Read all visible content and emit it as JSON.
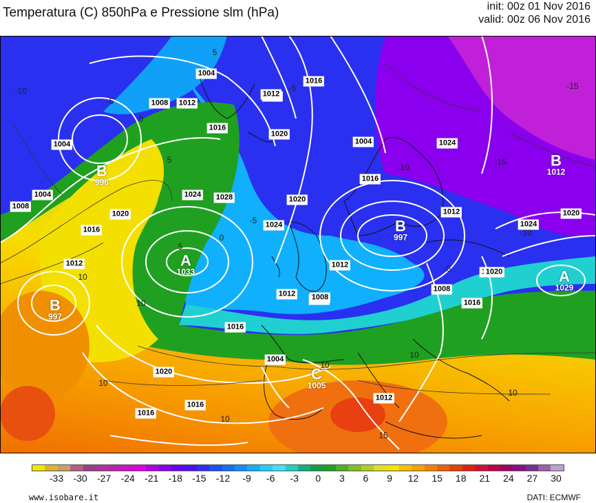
{
  "header": {
    "title": "Temperatura (C) 850hPa e Pressione slm (hPa)",
    "init": "init: 00z 01 Nov 2016",
    "valid": "valid: 00z 06 Nov 2016"
  },
  "map": {
    "pressure_centers": [
      {
        "type": "B",
        "value": "996"
      },
      {
        "type": "B",
        "value": "997"
      },
      {
        "type": "A",
        "value": "1033"
      },
      {
        "type": "B",
        "value": "997"
      },
      {
        "type": "C",
        "value": "1005"
      },
      {
        "type": "B",
        "value": "1012"
      },
      {
        "type": "A",
        "value": "1029"
      }
    ],
    "isobar_labels": [
      "1004",
      "1008",
      "1012",
      "1016",
      "1020",
      "1024",
      "1028",
      "1004",
      "1004",
      "1008",
      "1012",
      "1016",
      "1020",
      "1024",
      "1016",
      "1012",
      "1016",
      "1012",
      "1008",
      "1004",
      "1016",
      "1020",
      "1024",
      "1020",
      "1012",
      "1016",
      "1008",
      "1012",
      "1016",
      "1020",
      "1024",
      "1028",
      "1012",
      "1004",
      "1008",
      "1012",
      "1016",
      "1020"
    ],
    "isotherm_labels": [
      "-10",
      "-5",
      "0",
      "5",
      "10",
      "10",
      "5",
      "10",
      "-5",
      "0",
      "5",
      "-5",
      "10",
      "10",
      "10",
      "15",
      "10",
      "-10",
      "-15",
      "-15",
      "-10",
      "-5"
    ]
  },
  "legend": {
    "ticks": [
      "-33",
      "-30",
      "-27",
      "-24",
      "-21",
      "-18",
      "-15",
      "-12",
      "-9",
      "-6",
      "-3",
      "0",
      "3",
      "6",
      "9",
      "12",
      "15",
      "18",
      "21",
      "24",
      "27",
      "30"
    ],
    "colors": [
      "#f2e600",
      "#e0b030",
      "#c8a060",
      "#b06080",
      "#9a3e8a",
      "#b030a0",
      "#c020b0",
      "#d010c8",
      "#e000e0",
      "#b000e8",
      "#8a00ee",
      "#6a00f0",
      "#4a10f4",
      "#2a30f6",
      "#1a50f8",
      "#1070fa",
      "#0c90fb",
      "#10b0fc",
      "#20d0fc",
      "#40e0ff",
      "#20d0c0",
      "#10b080",
      "#10a040",
      "#20a020",
      "#50b020",
      "#80c020",
      "#b0d020",
      "#e0e020",
      "#f8e000",
      "#f8c000",
      "#f8a000",
      "#f88000",
      "#f06000",
      "#e84000",
      "#e02010",
      "#d01030",
      "#c00040",
      "#a00060",
      "#8a1088",
      "#7a3090",
      "#9a60a8",
      "#c0a0d0"
    ]
  },
  "footer": {
    "website": "www.isobare.it",
    "source": "DATI: ECMWF"
  }
}
